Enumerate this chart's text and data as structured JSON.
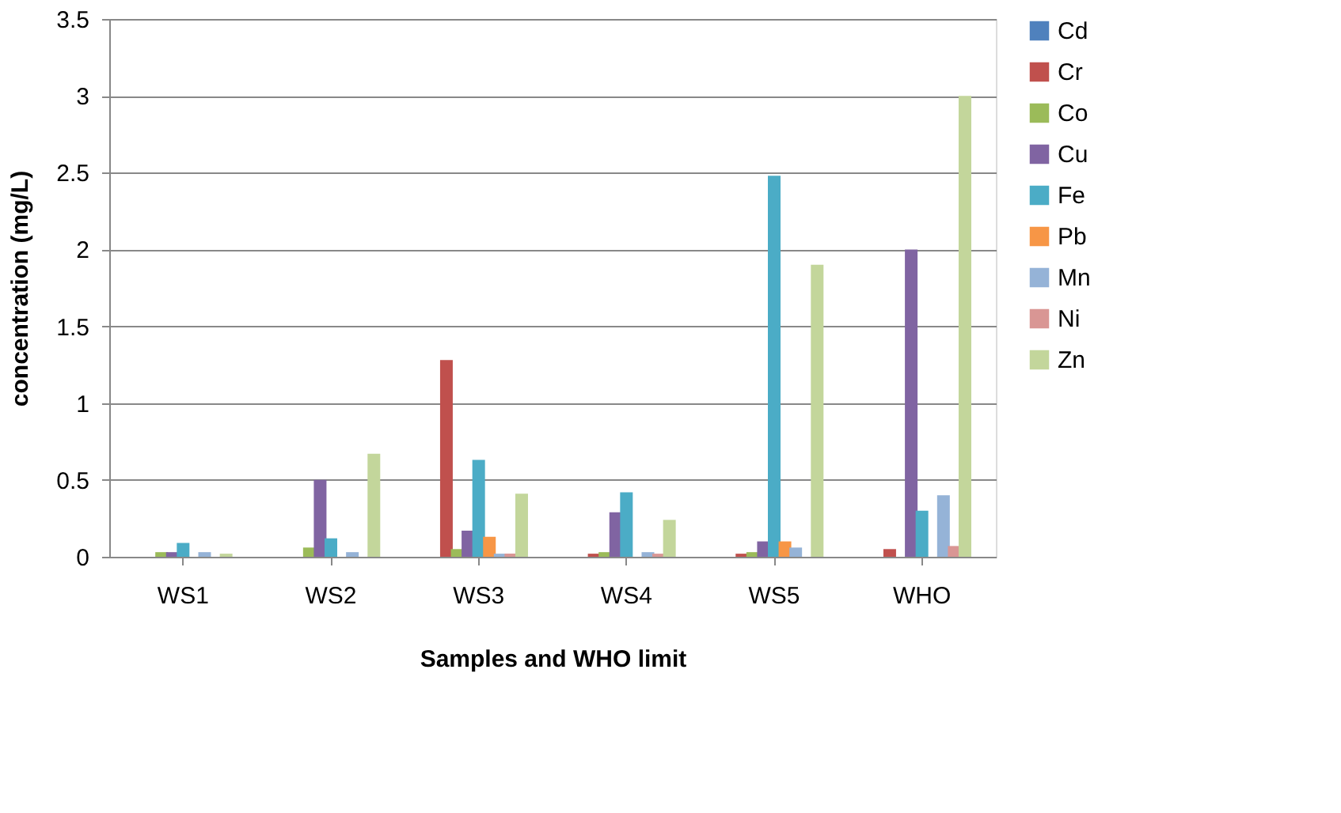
{
  "chart_data": {
    "type": "bar",
    "xlabel": "Samples and WHO limit",
    "ylabel": "concentration (mg/L)",
    "categories": [
      "WS1",
      "WS2",
      "WS3",
      "WS4",
      "WS5",
      "WHO"
    ],
    "series": [
      {
        "name": "Cd",
        "color": "#4f81bd",
        "values": [
          0,
          0,
          0,
          0,
          0,
          0
        ]
      },
      {
        "name": "Cr",
        "color": "#c0504d",
        "values": [
          0,
          0,
          1.28,
          0.02,
          0.02,
          0.05
        ]
      },
      {
        "name": "Co",
        "color": "#9bbb59",
        "values": [
          0.03,
          0.06,
          0.05,
          0.03,
          0.03,
          0
        ]
      },
      {
        "name": "Cu",
        "color": "#8064a2",
        "values": [
          0.03,
          0.5,
          0.17,
          0.29,
          0.1,
          2
        ]
      },
      {
        "name": "Fe",
        "color": "#4bacc6",
        "values": [
          0.09,
          0.12,
          0.63,
          0.42,
          2.48,
          0.3
        ]
      },
      {
        "name": "Pb",
        "color": "#f79646",
        "values": [
          0,
          0,
          0.13,
          0,
          0.1,
          0
        ]
      },
      {
        "name": "Mn",
        "color": "#95b3d7",
        "values": [
          0.03,
          0.03,
          0.02,
          0.03,
          0.06,
          0.4
        ]
      },
      {
        "name": "Ni",
        "color": "#d99694",
        "values": [
          0,
          0,
          0.02,
          0.02,
          0,
          0.07
        ]
      },
      {
        "name": "Zn",
        "color": "#c3d69b",
        "values": [
          0.02,
          0.67,
          0.41,
          0.24,
          1.9,
          3
        ]
      }
    ],
    "ylim": [
      0,
      3.5
    ],
    "yticks": [
      0,
      0.5,
      1,
      1.5,
      2,
      2.5,
      3,
      3.5
    ],
    "grid": "y",
    "legend": "right"
  }
}
